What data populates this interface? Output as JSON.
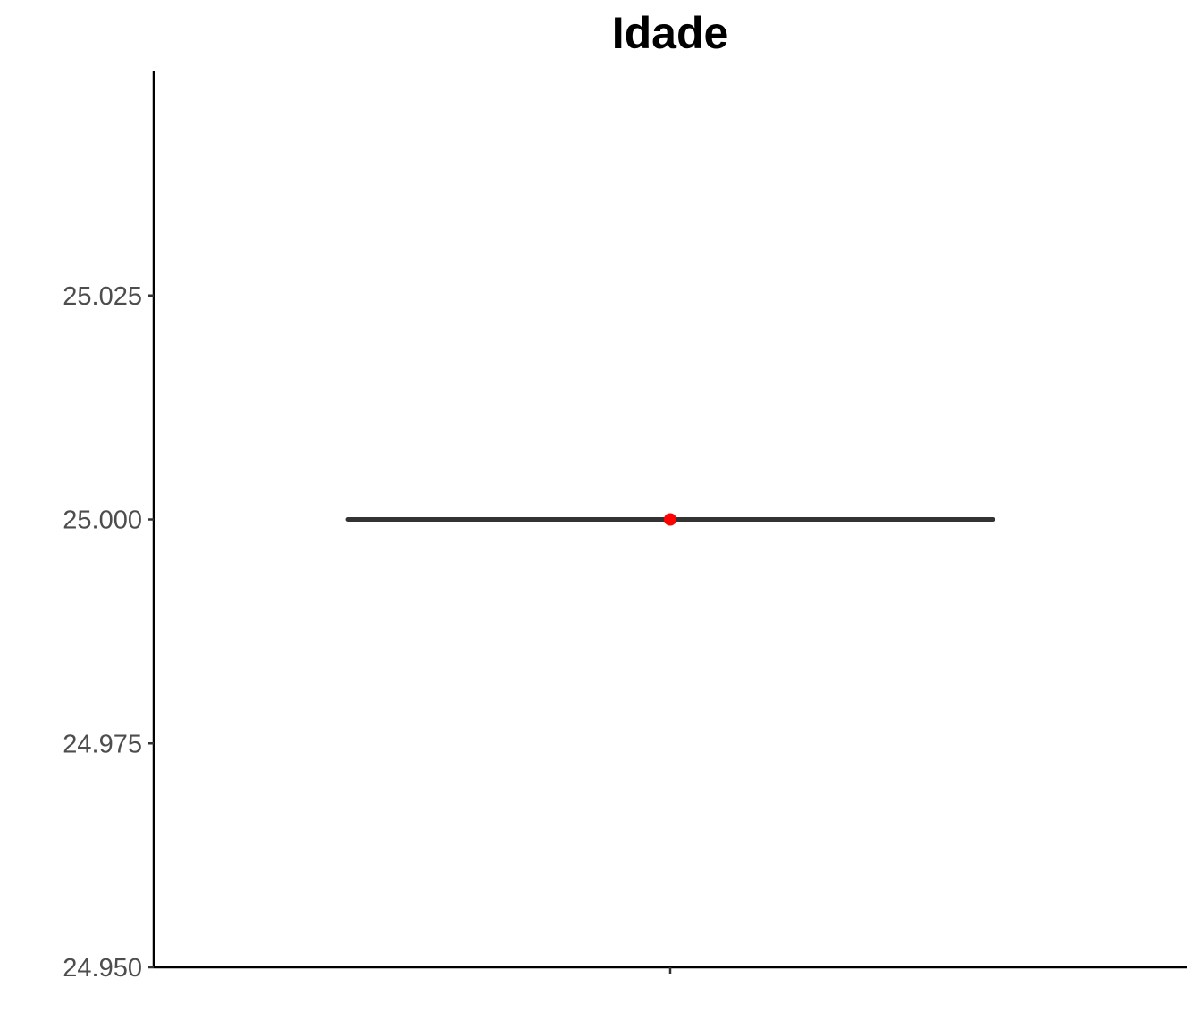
{
  "chart_data": {
    "type": "box",
    "title": "Idade",
    "xlabel": "",
    "ylabel": "",
    "categories": [
      ""
    ],
    "box": {
      "min": 25.0,
      "q1": 25.0,
      "median": 25.0,
      "q3": 25.0,
      "max": 25.0
    },
    "mean_point": {
      "value": 25.0,
      "color": "#ff0000"
    },
    "box_color": "#333333",
    "ylim": [
      24.95,
      25.05
    ],
    "y_ticks": [
      {
        "value": 24.95,
        "label": "24.950"
      },
      {
        "value": 24.975,
        "label": "24.975"
      },
      {
        "value": 25.0,
        "label": "25.000"
      },
      {
        "value": 25.025,
        "label": "25.025"
      }
    ],
    "grid": false,
    "legend": "none"
  }
}
